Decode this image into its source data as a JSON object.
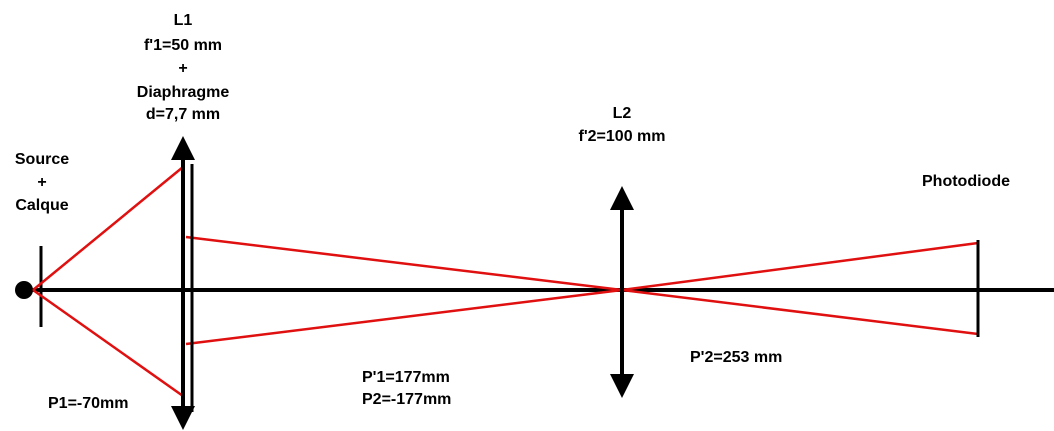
{
  "labels": {
    "source": [
      "Source",
      "+",
      "Calque"
    ],
    "l1": [
      "L1",
      "f'1=50 mm",
      "+",
      "Diaphragme",
      "d=7,7 mm"
    ],
    "l2": [
      "L2",
      "f'2=100 mm"
    ],
    "photodiode": "Photodiode",
    "p1": "P1=-70mm",
    "p1_prime": "P'1=177mm",
    "p2": "P2=-177mm",
    "p2_prime": "P'2=253 mm"
  },
  "colors": {
    "axis": "#000000",
    "rays": "#e01010",
    "lens": "#000000"
  }
}
